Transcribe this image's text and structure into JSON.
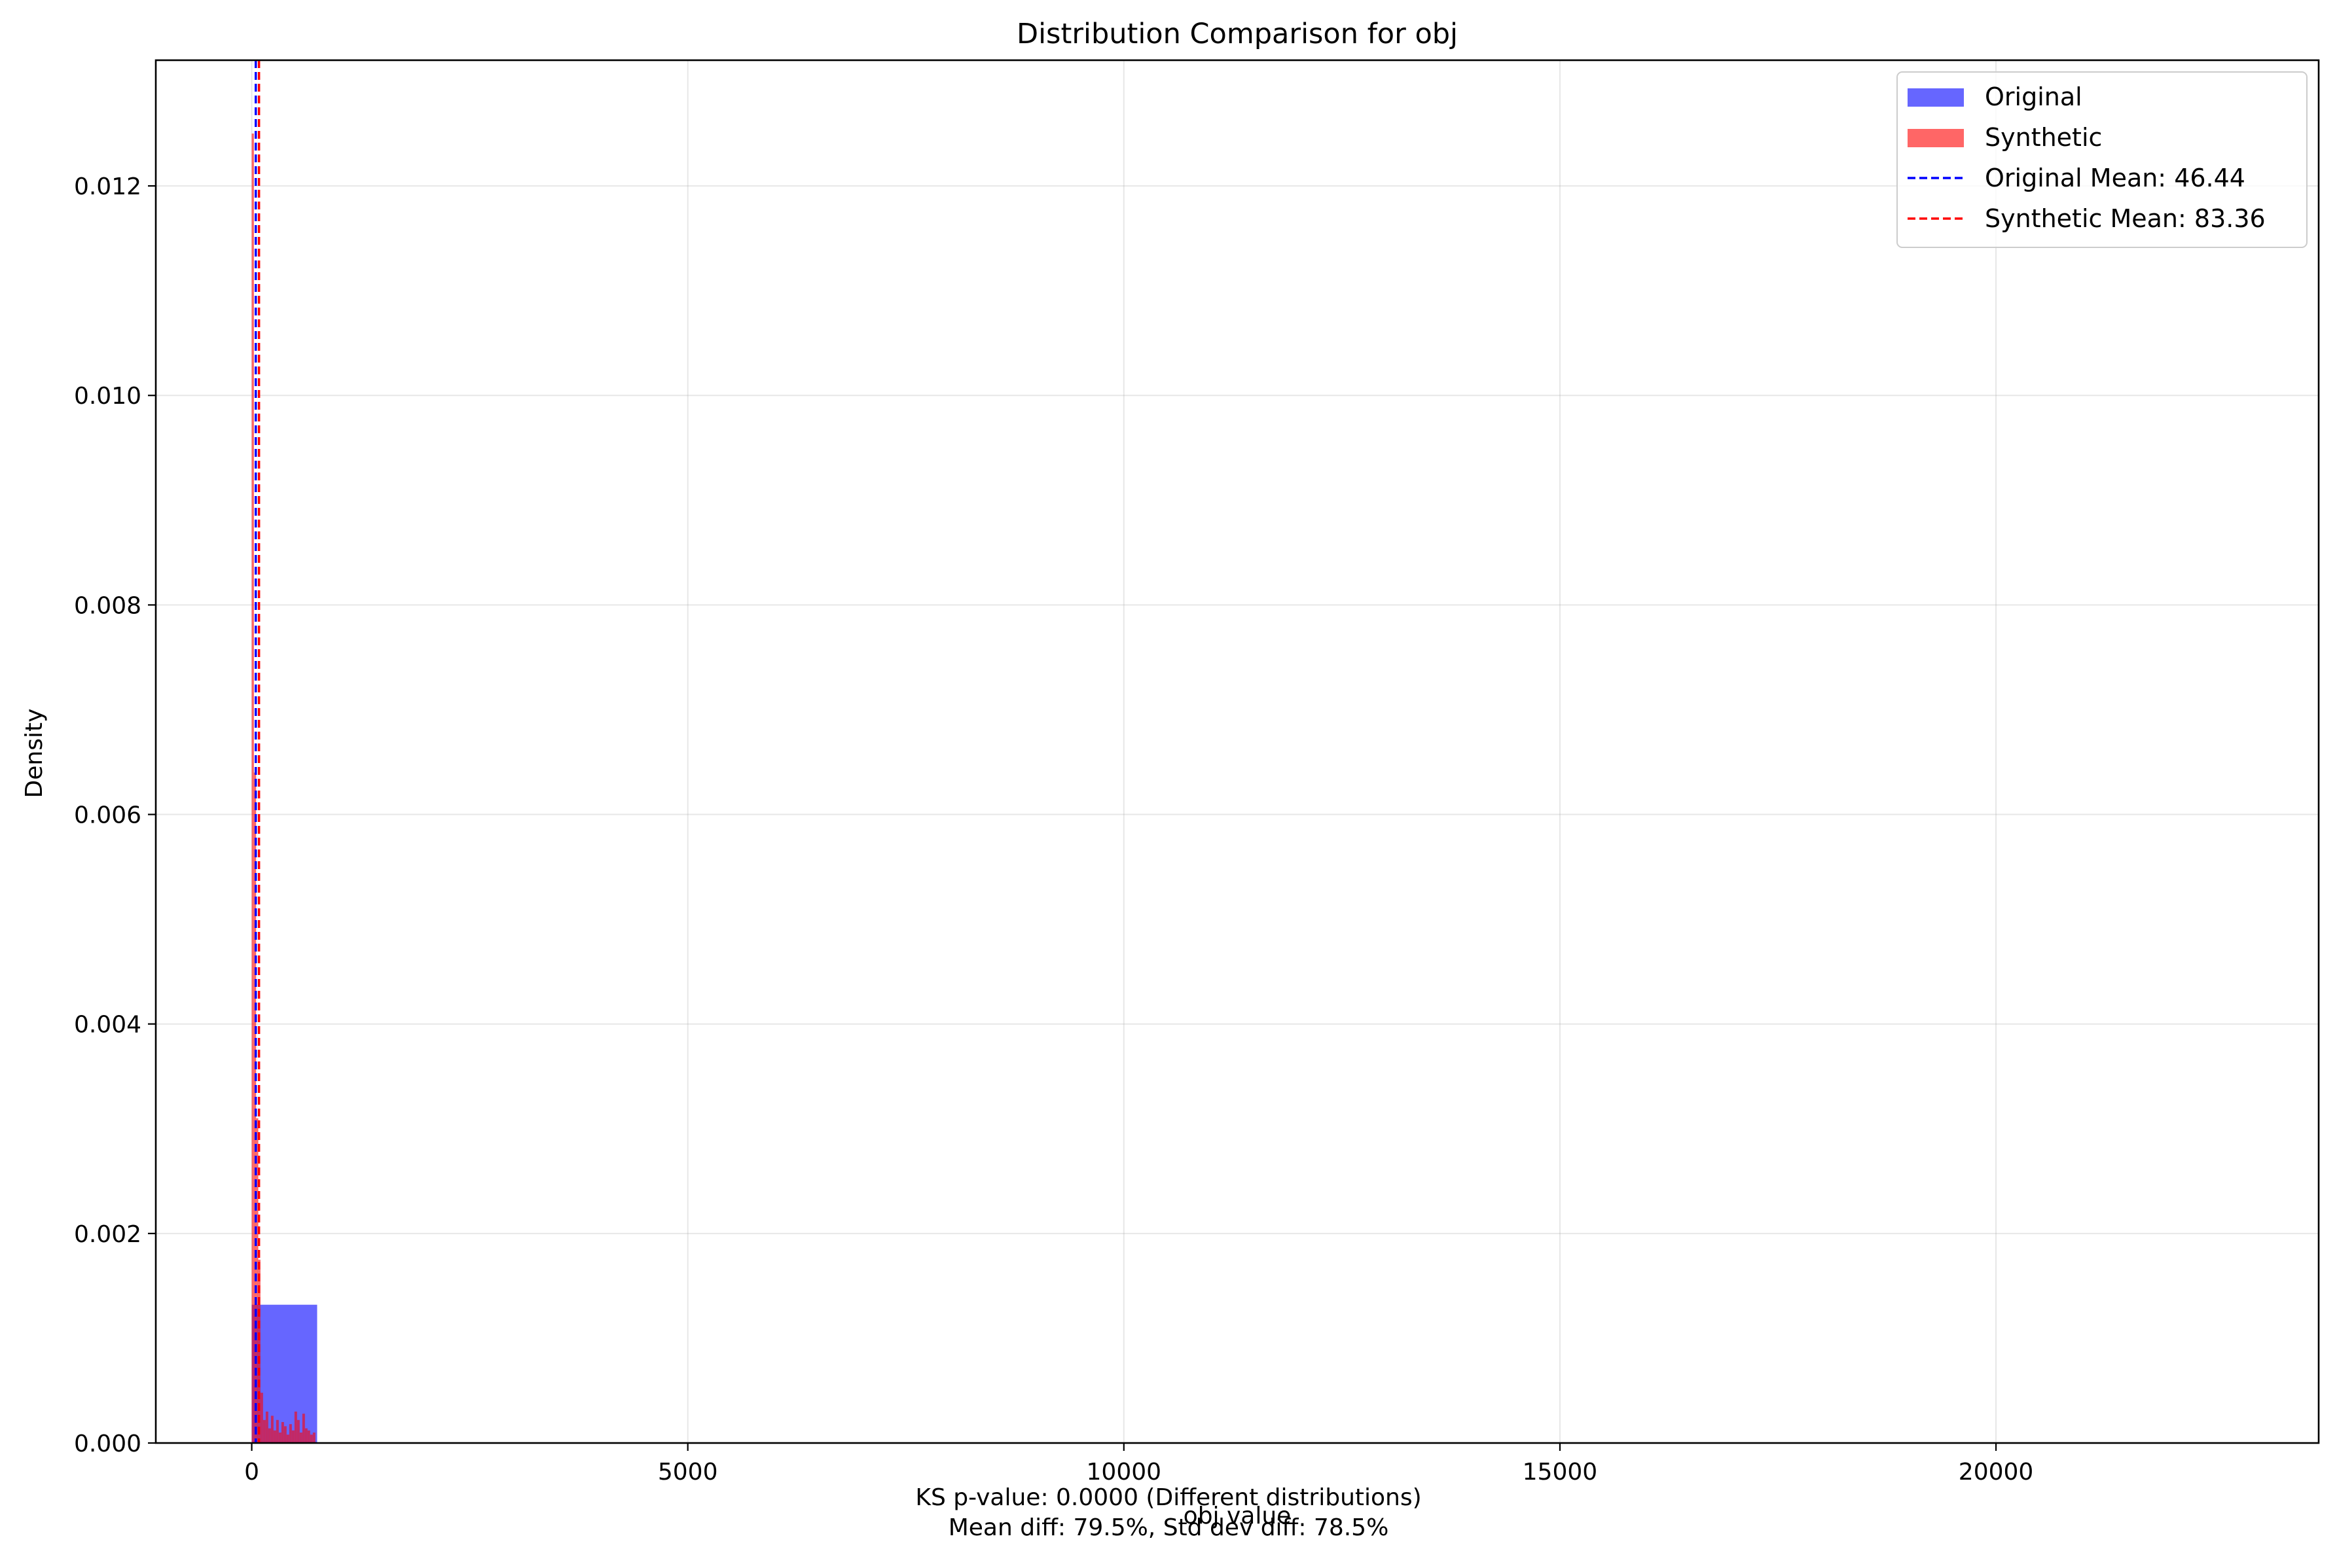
{
  "chart_data": {
    "type": "bar",
    "title": "Distribution Comparison for obj",
    "xlabel": "obj value",
    "ylabel": "Density",
    "xlim": [
      -1100,
      23700
    ],
    "ylim": [
      0,
      0.0132
    ],
    "xticks": [
      0,
      5000,
      10000,
      15000,
      20000
    ],
    "yticks": [
      0.0,
      0.002,
      0.004,
      0.006,
      0.008,
      0.01,
      0.012
    ],
    "ytick_labels": [
      "0.000",
      "0.002",
      "0.004",
      "0.006",
      "0.008",
      "0.010",
      "0.012"
    ],
    "grid": true,
    "legend_position": "top-right",
    "series": [
      {
        "name": "Original",
        "kind": "histogram",
        "color": "#0000ff",
        "opacity": 0.6,
        "bins": [
          [
            0,
            750,
            0.00132
          ]
        ]
      },
      {
        "name": "Synthetic",
        "kind": "histogram",
        "color": "#ff0000",
        "opacity": 0.6,
        "bins": [
          [
            0,
            25,
            0.0125
          ],
          [
            25,
            50,
            0.0064
          ],
          [
            50,
            75,
            0.0031
          ],
          [
            75,
            100,
            0.00175
          ],
          [
            100,
            130,
            0.00048
          ],
          [
            130,
            160,
            0.00022
          ],
          [
            160,
            190,
            0.0003
          ],
          [
            190,
            220,
            0.00014
          ],
          [
            220,
            250,
            0.00026
          ],
          [
            250,
            280,
            0.00012
          ],
          [
            280,
            310,
            0.00022
          ],
          [
            310,
            340,
            0.0001
          ],
          [
            340,
            370,
            0.0002
          ],
          [
            370,
            400,
            0.00016
          ],
          [
            400,
            430,
            8e-05
          ],
          [
            430,
            460,
            0.00018
          ],
          [
            460,
            490,
            0.00012
          ],
          [
            490,
            520,
            0.0003
          ],
          [
            520,
            550,
            0.00022
          ],
          [
            550,
            580,
            0.0001
          ],
          [
            580,
            610,
            0.00028
          ],
          [
            610,
            640,
            0.00014
          ],
          [
            640,
            670,
            0.00012
          ],
          [
            670,
            700,
            8e-05
          ],
          [
            700,
            730,
            0.0001
          ]
        ]
      },
      {
        "name": "Original Mean: 46.44",
        "kind": "vline",
        "x": 46.44,
        "color": "#0000ff"
      },
      {
        "name": "Synthetic Mean: 83.36",
        "kind": "vline",
        "x": 83.36,
        "color": "#ff0000"
      }
    ],
    "annotations": [
      "KS p-value: 0.0000 (Different distributions)",
      "Mean diff: 79.5%, Std dev diff: 78.5%"
    ]
  }
}
